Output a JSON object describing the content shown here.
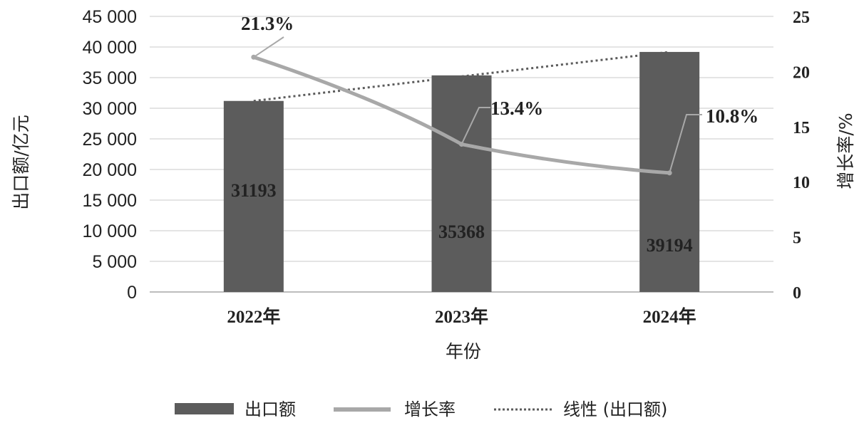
{
  "chart_data": {
    "type": "bar",
    "categories": [
      "2022年",
      "2023年",
      "2024年"
    ],
    "series": [
      {
        "name": "出口额",
        "type": "bar",
        "axis": "left",
        "values": [
          31193,
          35368,
          39194
        ],
        "color": "#5c5c5c"
      },
      {
        "name": "增长率",
        "type": "line",
        "axis": "right",
        "values": [
          21.3,
          13.4,
          10.8
        ],
        "color": "#a8a8a8"
      },
      {
        "name": "线性 (出口额)",
        "type": "trendline",
        "axis": "left",
        "values": [
          31193,
          35194,
          39194
        ],
        "color": "#5c5c5c"
      }
    ],
    "bar_labels": [
      "31193",
      "35368",
      "39194"
    ],
    "rate_labels": [
      "21.3%",
      "13.4%",
      "10.8%"
    ],
    "xlabel": "年份",
    "ylabel": "出口额/亿元",
    "ylabel_right": "增长率/%",
    "ylim": [
      0,
      45000
    ],
    "ylim_right": [
      0,
      25
    ],
    "yticks": [
      "0",
      "5 000",
      "10 000",
      "15 000",
      "20 000",
      "25 000",
      "30 000",
      "35 000",
      "40 000",
      "45 000"
    ],
    "yticks_right": [
      "0",
      "5",
      "10",
      "15",
      "20",
      "25"
    ],
    "grid": true,
    "legend_position": "bottom"
  }
}
